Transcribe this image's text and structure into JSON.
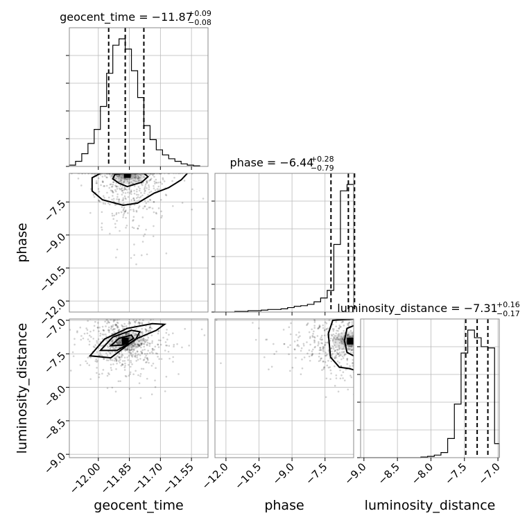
{
  "chart_data": {
    "type": "corner",
    "parameters": [
      "geocent_time",
      "phase",
      "luminosity_distance"
    ],
    "axes": {
      "geocent_time": {
        "range": [
          -12.14,
          -11.47
        ],
        "ticks": [
          -12.0,
          -11.85,
          -11.7,
          -11.55
        ],
        "tick_labels": [
          "−12.00",
          "−11.85",
          "−11.70",
          "−11.55"
        ],
        "label": "geocent_time"
      },
      "phase": {
        "range": [
          -12.5,
          -6.2
        ],
        "ticks": [
          -12.0,
          -10.5,
          -9.0,
          -7.5
        ],
        "tick_labels": [
          "−12.0",
          "−10.5",
          "−9.0",
          "−7.5"
        ],
        "label": "phase"
      },
      "luminosity_distance": {
        "range": [
          -9.05,
          -6.98
        ],
        "ticks": [
          -9.0,
          -8.5,
          -8.0,
          -7.5,
          -7.0
        ],
        "tick_labels": [
          "−9.0",
          "−8.5",
          "−8.0",
          "−7.5",
          "−7.0"
        ],
        "label": "luminosity_distance"
      }
    },
    "titles": [
      {
        "param": "geocent_time",
        "text": "geocent_time = −11.87",
        "plus": "+0.09",
        "minus": "−0.08"
      },
      {
        "param": "phase",
        "text": "phase = −6.44",
        "plus": "+0.28",
        "minus": "−0.79"
      },
      {
        "param": "luminosity_distance",
        "text": "luminosity_distance = −7.31",
        "plus": "+0.16",
        "minus": "−0.17"
      }
    ],
    "histograms": {
      "geocent_time": {
        "edges": [
          -12.14,
          -12.11,
          -12.08,
          -12.05,
          -12.02,
          -11.99,
          -11.96,
          -11.93,
          -11.9,
          -11.87,
          -11.84,
          -11.81,
          -11.78,
          -11.75,
          -11.72,
          -11.69,
          -11.66,
          -11.63,
          -11.6,
          -11.57,
          -11.54,
          -11.51
        ],
        "counts": [
          0.01,
          0.04,
          0.1,
          0.18,
          0.29,
          0.47,
          0.73,
          0.95,
          1.0,
          0.92,
          0.75,
          0.54,
          0.32,
          0.21,
          0.13,
          0.09,
          0.06,
          0.04,
          0.02,
          0.01,
          0.005
        ],
        "quantiles": [
          -11.95,
          -11.87,
          -11.78
        ]
      },
      "phase": {
        "edges": [
          -12.5,
          -12.2,
          -11.9,
          -11.6,
          -11.3,
          -11.0,
          -10.7,
          -10.4,
          -10.1,
          -9.8,
          -9.5,
          -9.2,
          -8.9,
          -8.6,
          -8.3,
          -8.0,
          -7.7,
          -7.4,
          -7.1,
          -6.8,
          -6.5,
          -6.2
        ],
        "counts": [
          0.0,
          0.0,
          0.0,
          0.005,
          0.005,
          0.01,
          0.01,
          0.015,
          0.02,
          0.02,
          0.025,
          0.035,
          0.045,
          0.05,
          0.06,
          0.08,
          0.11,
          0.17,
          0.53,
          0.95,
          1.0
        ],
        "quantiles": [
          -7.23,
          -6.44,
          -6.16
        ]
      },
      "luminosity_distance": {
        "edges": [
          -9.05,
          -8.95,
          -8.85,
          -8.75,
          -8.65,
          -8.55,
          -8.45,
          -8.35,
          -8.25,
          -8.15,
          -8.05,
          -7.95,
          -7.85,
          -7.75,
          -7.65,
          -7.55,
          -7.45,
          -7.35,
          -7.25,
          -7.15,
          -7.05,
          -6.98
        ],
        "counts": [
          0.0,
          0.0,
          0.0,
          0.0,
          0.0,
          0.0,
          0.0,
          0.0,
          0.0,
          0.005,
          0.01,
          0.02,
          0.04,
          0.15,
          0.42,
          0.82,
          1.0,
          0.94,
          0.87,
          0.86,
          0.11
        ],
        "quantiles": [
          -7.48,
          -7.31,
          -7.15
        ]
      }
    },
    "joint": [
      {
        "x": "geocent_time",
        "y": "phase",
        "peak": [
          -11.86,
          -6.25
        ],
        "spread": [
          0.07,
          0.9
        ],
        "contours": [
          [
            [
              -11.88,
              -6.2
            ],
            [
              -11.92,
              -6.25
            ],
            [
              -11.93,
              -6.45
            ],
            [
              -11.9,
              -6.65
            ],
            [
              -11.86,
              -6.8
            ],
            [
              -11.79,
              -6.6
            ],
            [
              -11.76,
              -6.35
            ],
            [
              -11.78,
              -6.2
            ]
          ],
          [
            [
              -11.99,
              -6.2
            ],
            [
              -12.03,
              -6.4
            ],
            [
              -12.03,
              -7.0
            ],
            [
              -11.98,
              -7.4
            ],
            [
              -11.88,
              -7.65
            ],
            [
              -11.81,
              -7.55
            ],
            [
              -11.73,
              -7.1
            ],
            [
              -11.66,
              -6.85
            ],
            [
              -11.6,
              -6.5
            ],
            [
              -11.57,
              -6.2
            ]
          ]
        ]
      },
      {
        "x": "geocent_time",
        "y": "luminosity_distance",
        "peak": [
          -11.87,
          -7.31
        ],
        "spread": [
          0.07,
          0.17
        ],
        "contours": [
          [
            [
              -11.94,
              -7.38
            ],
            [
              -11.9,
              -7.27
            ],
            [
              -11.84,
              -7.22
            ],
            [
              -11.83,
              -7.27
            ],
            [
              -11.88,
              -7.37
            ]
          ],
          [
            [
              -11.99,
              -7.45
            ],
            [
              -11.93,
              -7.25
            ],
            [
              -11.84,
              -7.15
            ],
            [
              -11.8,
              -7.17
            ],
            [
              -11.82,
              -7.29
            ],
            [
              -11.91,
              -7.45
            ]
          ],
          [
            [
              -12.04,
              -7.53
            ],
            [
              -11.97,
              -7.28
            ],
            [
              -11.86,
              -7.12
            ],
            [
              -11.74,
              -7.05
            ],
            [
              -11.68,
              -7.06
            ],
            [
              -11.72,
              -7.15
            ],
            [
              -11.82,
              -7.28
            ],
            [
              -11.94,
              -7.56
            ]
          ]
        ]
      },
      {
        "x": "phase",
        "y": "luminosity_distance",
        "peak": [
          -6.35,
          -7.31
        ],
        "spread": [
          0.9,
          0.17
        ],
        "contours": [
          [
            [
              -6.2,
              -7.08
            ],
            [
              -6.5,
              -7.12
            ],
            [
              -6.62,
              -7.3
            ],
            [
              -6.5,
              -7.48
            ],
            [
              -6.2,
              -7.53
            ]
          ],
          [
            [
              -6.2,
              -6.98
            ],
            [
              -7.15,
              -7.0
            ],
            [
              -7.35,
              -7.2
            ],
            [
              -7.25,
              -7.55
            ],
            [
              -6.85,
              -7.7
            ],
            [
              -6.4,
              -7.72
            ],
            [
              -6.2,
              -7.74
            ]
          ]
        ]
      }
    ]
  }
}
